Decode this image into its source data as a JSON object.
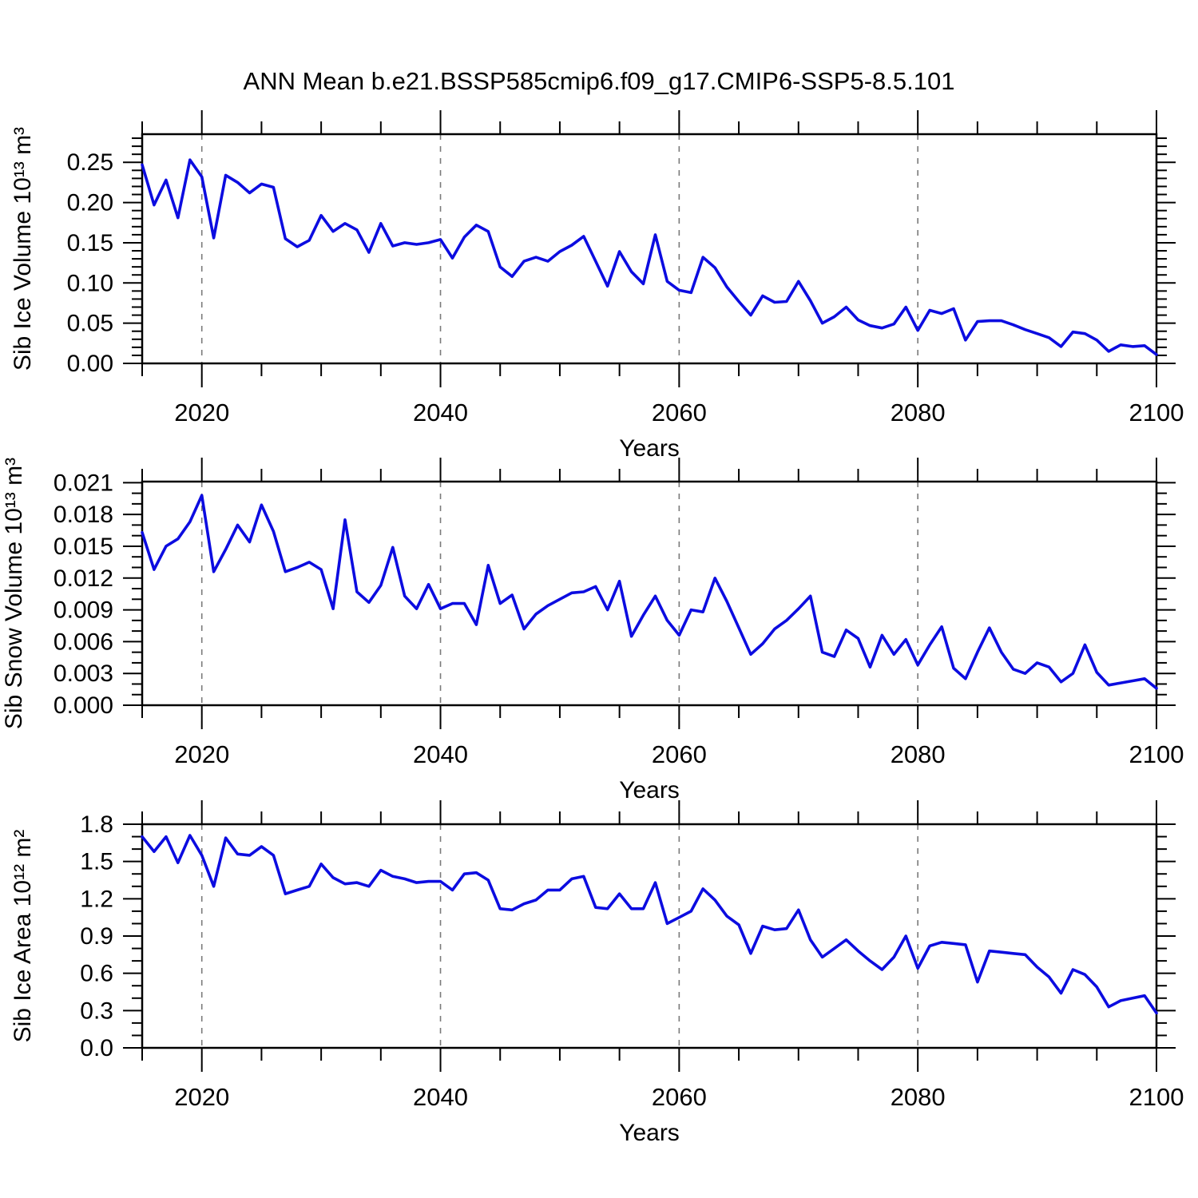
{
  "title": "ANN Mean b.e21.BSSP585cmip6.f09_g17.CMIP6-SSP5-8.5.101",
  "colors": {
    "line": "#0c0ce0",
    "frame": "#000000",
    "grid": "#7a7a7a",
    "background": "#ffffff"
  },
  "x_axis": {
    "label": "Years",
    "start": 2015,
    "end": 2100,
    "major_ticks": [
      "2020",
      "2040",
      "2060",
      "2080",
      "2100"
    ],
    "minor_step": 5,
    "gridline_years": [
      2020,
      2040,
      2060,
      2080
    ]
  },
  "chart_data": [
    {
      "type": "line",
      "name": "sib-ice-volume",
      "ylabel": "Sib Ice Volume 10¹³ m³",
      "ylim": [
        0,
        0.285
      ],
      "ytick_labels": [
        "0.00",
        "0.05",
        "0.10",
        "0.15",
        "0.20",
        "0.25"
      ],
      "yminor_step": 0.01,
      "x_start": 2015,
      "values": [
        0.247,
        0.197,
        0.228,
        0.181,
        0.253,
        0.232,
        0.156,
        0.234,
        0.225,
        0.212,
        0.223,
        0.219,
        0.155,
        0.145,
        0.153,
        0.184,
        0.164,
        0.174,
        0.166,
        0.138,
        0.174,
        0.146,
        0.15,
        0.148,
        0.15,
        0.154,
        0.131,
        0.157,
        0.172,
        0.164,
        0.12,
        0.108,
        0.127,
        0.132,
        0.127,
        0.139,
        0.147,
        0.158,
        0.127,
        0.096,
        0.139,
        0.114,
        0.099,
        0.16,
        0.102,
        0.091,
        0.088,
        0.132,
        0.119,
        0.095,
        0.077,
        0.06,
        0.084,
        0.076,
        0.077,
        0.102,
        0.078,
        0.05,
        0.058,
        0.07,
        0.054,
        0.047,
        0.044,
        0.049,
        0.07,
        0.041,
        0.066,
        0.062,
        0.068,
        0.029,
        0.052,
        0.053,
        0.053,
        0.048,
        0.042,
        0.037,
        0.032,
        0.021,
        0.039,
        0.037,
        0.029,
        0.015,
        0.023,
        0.021,
        0.022,
        0.011
      ]
    },
    {
      "type": "line",
      "name": "sib-snow-volume",
      "ylabel": "Sib Snow Volume 10¹³ m³",
      "ylim": [
        0,
        0.0211
      ],
      "ytick_labels": [
        "0.000",
        "0.003",
        "0.006",
        "0.009",
        "0.012",
        "0.015",
        "0.018",
        "0.021"
      ],
      "yminor_step": 0.001,
      "x_start": 2015,
      "values": [
        0.0163,
        0.0128,
        0.015,
        0.0157,
        0.0173,
        0.0198,
        0.0126,
        0.0147,
        0.017,
        0.0154,
        0.0189,
        0.0164,
        0.0126,
        0.013,
        0.0135,
        0.0128,
        0.0091,
        0.0175,
        0.0107,
        0.0097,
        0.0113,
        0.0149,
        0.0103,
        0.0091,
        0.0114,
        0.0091,
        0.0096,
        0.0096,
        0.0076,
        0.0132,
        0.0096,
        0.0104,
        0.0072,
        0.0086,
        0.0094,
        0.01,
        0.0106,
        0.0107,
        0.0112,
        0.009,
        0.0117,
        0.0065,
        0.0085,
        0.0103,
        0.008,
        0.0066,
        0.009,
        0.0088,
        0.012,
        0.0098,
        0.0073,
        0.0048,
        0.0058,
        0.0072,
        0.008,
        0.0091,
        0.0103,
        0.005,
        0.0046,
        0.0071,
        0.0063,
        0.0036,
        0.0066,
        0.0048,
        0.0062,
        0.0038,
        0.0057,
        0.0074,
        0.0035,
        0.0025,
        0.005,
        0.0073,
        0.005,
        0.0034,
        0.003,
        0.004,
        0.0036,
        0.0022,
        0.003,
        0.0057,
        0.0031,
        0.0019,
        0.0021,
        0.0023,
        0.0025,
        0.0016
      ]
    },
    {
      "type": "line",
      "name": "sib-ice-area",
      "ylabel": "Sib Ice Area 10¹² m²",
      "ylim": [
        0,
        1.8
      ],
      "ytick_labels": [
        "0.0",
        "0.3",
        "0.6",
        "0.9",
        "1.2",
        "1.5",
        "1.8"
      ],
      "yminor_step": 0.1,
      "x_start": 2015,
      "values": [
        1.7,
        1.58,
        1.7,
        1.49,
        1.71,
        1.55,
        1.3,
        1.69,
        1.56,
        1.55,
        1.62,
        1.55,
        1.24,
        1.27,
        1.3,
        1.48,
        1.37,
        1.32,
        1.33,
        1.3,
        1.43,
        1.38,
        1.36,
        1.33,
        1.34,
        1.34,
        1.27,
        1.4,
        1.41,
        1.35,
        1.12,
        1.11,
        1.16,
        1.19,
        1.27,
        1.27,
        1.36,
        1.38,
        1.13,
        1.12,
        1.24,
        1.12,
        1.12,
        1.33,
        1.0,
        1.05,
        1.1,
        1.28,
        1.19,
        1.06,
        0.99,
        0.76,
        0.98,
        0.95,
        0.96,
        1.11,
        0.87,
        0.73,
        0.8,
        0.87,
        0.78,
        0.7,
        0.63,
        0.73,
        0.9,
        0.64,
        0.82,
        0.85,
        0.84,
        0.83,
        0.53,
        0.78,
        0.77,
        0.76,
        0.75,
        0.65,
        0.57,
        0.44,
        0.63,
        0.59,
        0.49,
        0.33,
        0.38,
        0.4,
        0.42,
        0.28
      ]
    }
  ]
}
